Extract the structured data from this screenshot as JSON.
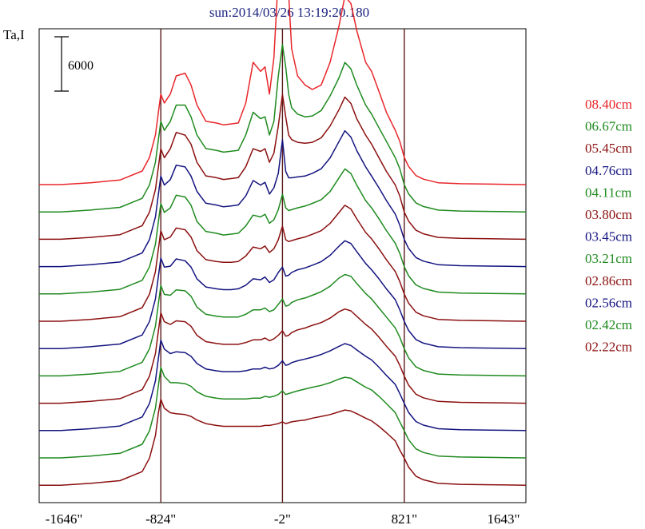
{
  "chart_data": {
    "type": "line",
    "title": "sun:2014/03/26 13:19:20.180",
    "ylabel": "Ta,I",
    "scale_bar_label": "6000",
    "x_tick_labels": [
      "-1646\"",
      "-824\"",
      "-2\"",
      "821\"",
      "1643\""
    ],
    "x_ticks": [
      -1646,
      -824,
      -2,
      821,
      1643
    ],
    "xlim": [
      -1646,
      1643
    ],
    "vertical_lines": [
      -824,
      -2,
      821
    ],
    "colors": {
      "red": "#e8262a",
      "green": "#1f8a1f",
      "darkred": "#8b1010",
      "blue": "#141480",
      "line": "#5a1a1a"
    },
    "shape_x": [
      -1646,
      -1500,
      -1300,
      -1100,
      -950,
      -900,
      -860,
      -840,
      -824,
      -800,
      -760,
      -720,
      -660,
      -620,
      -580,
      -520,
      -450,
      -400,
      -350,
      -300,
      -250,
      -200,
      -150,
      -120,
      -90,
      -60,
      -30,
      -2,
      20,
      40,
      60,
      100,
      150,
      200,
      260,
      320,
      380,
      420,
      460,
      500,
      560,
      600,
      650,
      700,
      760,
      790,
      821,
      850,
      900,
      950,
      1050,
      1200,
      1400,
      1643
    ],
    "series": [
      {
        "name": "08.40cm",
        "color": "red",
        "offset": 0,
        "y": [
          0,
          0,
          200,
          500,
          1500,
          3000,
          5500,
          8000,
          10000,
          9000,
          10000,
          12000,
          12300,
          11000,
          8800,
          7000,
          6800,
          6600,
          6700,
          6800,
          9000,
          13500,
          12500,
          13000,
          10000,
          14000,
          23000,
          27000,
          26000,
          21000,
          15000,
          12000,
          11000,
          10500,
          11000,
          13500,
          17500,
          20800,
          20000,
          17000,
          13500,
          12500,
          10300,
          8000,
          6000,
          4800,
          3000,
          2000,
          1000,
          600,
          200,
          100,
          50,
          0
        ]
      },
      {
        "name": "06.67cm",
        "color": "green",
        "offset": 0,
        "y": [
          0,
          0,
          200,
          500,
          1500,
          3000,
          5500,
          8000,
          10000,
          9000,
          10000,
          11800,
          11800,
          10500,
          8500,
          7000,
          6800,
          6600,
          6700,
          6800,
          8500,
          11000,
          10300,
          10500,
          8500,
          10000,
          15000,
          18500,
          16000,
          13000,
          11500,
          10800,
          10500,
          10600,
          11200,
          12800,
          14800,
          16500,
          15800,
          14000,
          11800,
          10800,
          9300,
          7800,
          6000,
          4800,
          3000,
          2000,
          1000,
          600,
          200,
          100,
          50,
          0
        ]
      },
      {
        "name": "05.45cm",
        "color": "darkred",
        "offset": 0,
        "y": [
          0,
          0,
          200,
          500,
          1500,
          3000,
          5500,
          8000,
          10000,
          9000,
          10000,
          11800,
          11500,
          10500,
          8500,
          7000,
          6800,
          6600,
          6700,
          6800,
          8000,
          10000,
          9700,
          10000,
          8500,
          9500,
          12500,
          16000,
          13500,
          11500,
          11000,
          10700,
          10600,
          10700,
          11200,
          12500,
          14300,
          15700,
          15000,
          13300,
          11500,
          10500,
          9000,
          7500,
          6000,
          4800,
          3000,
          2000,
          1000,
          600,
          200,
          100,
          50,
          0
        ]
      },
      {
        "name": "04.76cm",
        "color": "blue",
        "offset": 0,
        "y": [
          0,
          0,
          200,
          500,
          1500,
          3000,
          5500,
          8000,
          10000,
          9000,
          9600,
          11200,
          11000,
          10000,
          8300,
          7000,
          6800,
          6600,
          6700,
          6800,
          7800,
          9500,
          9000,
          9300,
          8000,
          8700,
          10300,
          14000,
          10500,
          9800,
          9800,
          9900,
          10000,
          10300,
          10800,
          12000,
          13800,
          15000,
          14300,
          12800,
          11000,
          10000,
          8700,
          7300,
          5800,
          4600,
          3000,
          2000,
          1000,
          600,
          200,
          100,
          50,
          0
        ]
      },
      {
        "name": "04.11cm",
        "color": "green",
        "offset": 0,
        "y": [
          0,
          0,
          200,
          500,
          1500,
          3000,
          5500,
          8000,
          10000,
          9000,
          9500,
          10900,
          10700,
          9800,
          8000,
          6900,
          6700,
          6500,
          6600,
          6700,
          7500,
          8700,
          8500,
          8800,
          7800,
          8200,
          9300,
          11000,
          9500,
          9200,
          9300,
          9500,
          9700,
          10000,
          10400,
          11300,
          12800,
          13800,
          13300,
          12000,
          10300,
          9500,
          8300,
          7000,
          5600,
          4500,
          3000,
          2000,
          1000,
          600,
          200,
          100,
          50,
          0
        ]
      },
      {
        "name": "03.80cm",
        "color": "darkred",
        "offset": 0,
        "y": [
          0,
          0,
          200,
          500,
          1500,
          3000,
          5500,
          8000,
          10000,
          9000,
          9300,
          10300,
          10100,
          9300,
          7800,
          6800,
          6600,
          6500,
          6500,
          6600,
          7200,
          8200,
          8000,
          8300,
          7600,
          8000,
          9000,
          10500,
          9000,
          8800,
          8900,
          9100,
          9300,
          9600,
          10000,
          10800,
          12000,
          12800,
          12400,
          11300,
          9800,
          9100,
          8000,
          6800,
          5500,
          4400,
          3000,
          2000,
          1000,
          600,
          200,
          100,
          50,
          0
        ]
      },
      {
        "name": "03.45cm",
        "color": "blue",
        "offset": 0,
        "y": [
          0,
          0,
          200,
          500,
          1500,
          3000,
          5500,
          8000,
          10000,
          9000,
          9100,
          9900,
          9700,
          9000,
          7700,
          6800,
          6600,
          6500,
          6500,
          6600,
          7000,
          7700,
          7600,
          7900,
          7300,
          7600,
          8400,
          9000,
          8000,
          8100,
          8400,
          8700,
          8900,
          9200,
          9600,
          10300,
          11300,
          11900,
          11600,
          10700,
          9400,
          8700,
          7700,
          6600,
          5400,
          4300,
          3000,
          2000,
          1000,
          600,
          200,
          100,
          50,
          0
        ]
      },
      {
        "name": "03.21cm",
        "color": "green",
        "offset": 0,
        "y": [
          0,
          0,
          200,
          500,
          1500,
          3000,
          5500,
          8000,
          10000,
          9000,
          8900,
          9500,
          9400,
          8800,
          7600,
          6800,
          6600,
          6500,
          6500,
          6500,
          6800,
          7300,
          7300,
          7500,
          7100,
          7300,
          7900,
          8500,
          7700,
          7800,
          8100,
          8400,
          8600,
          8900,
          9300,
          9900,
          10800,
          11200,
          11000,
          10200,
          9100,
          8500,
          7500,
          6500,
          5300,
          4300,
          3000,
          2000,
          1000,
          600,
          200,
          100,
          50,
          0
        ]
      },
      {
        "name": "02.86cm",
        "color": "darkred",
        "offset": 0,
        "y": [
          0,
          0,
          200,
          500,
          1500,
          3000,
          5500,
          8000,
          10000,
          9000,
          8700,
          9100,
          9000,
          8500,
          7500,
          6800,
          6600,
          6500,
          6500,
          6500,
          6700,
          7000,
          7000,
          7200,
          6900,
          7100,
          7500,
          8000,
          7400,
          7500,
          7800,
          8100,
          8300,
          8600,
          8900,
          9400,
          10100,
          10400,
          10200,
          9600,
          8700,
          8200,
          7300,
          6300,
          5200,
          4200,
          3000,
          2000,
          1000,
          600,
          200,
          100,
          50,
          0
        ]
      },
      {
        "name": "02.56cm",
        "color": "blue",
        "offset": 0,
        "y": [
          0,
          0,
          200,
          500,
          1500,
          3000,
          5500,
          8000,
          10000,
          9000,
          8500,
          8700,
          8600,
          8200,
          7400,
          6800,
          6600,
          6500,
          6500,
          6500,
          6600,
          6800,
          6800,
          7000,
          6800,
          6900,
          7200,
          7700,
          7200,
          7300,
          7500,
          7700,
          7900,
          8100,
          8400,
          8800,
          9300,
          9600,
          9400,
          8900,
          8200,
          7800,
          7000,
          6100,
          5100,
          4100,
          3000,
          2000,
          1000,
          600,
          200,
          100,
          50,
          0
        ]
      },
      {
        "name": "02.42cm",
        "color": "green",
        "offset": 0,
        "y": [
          0,
          0,
          200,
          500,
          1500,
          3000,
          5500,
          8000,
          10000,
          9000,
          8300,
          8300,
          8200,
          7900,
          7300,
          6800,
          6600,
          6500,
          6500,
          6500,
          6500,
          6600,
          6600,
          6800,
          6700,
          6800,
          7000,
          7400,
          7000,
          7100,
          7200,
          7400,
          7600,
          7800,
          8000,
          8300,
          8700,
          8900,
          8800,
          8400,
          7800,
          7500,
          6800,
          6000,
          5000,
          4000,
          3000,
          2000,
          1000,
          600,
          200,
          100,
          50,
          0
        ]
      },
      {
        "name": "02.22cm",
        "color": "darkred",
        "offset": 0,
        "y": [
          0,
          0,
          200,
          500,
          1500,
          3000,
          5500,
          8000,
          9500,
          8500,
          8000,
          7900,
          7800,
          7600,
          7200,
          6800,
          6600,
          6500,
          6500,
          6500,
          6500,
          6500,
          6500,
          6600,
          6600,
          6700,
          6800,
          7000,
          6800,
          6900,
          7000,
          7100,
          7200,
          7400,
          7600,
          7800,
          8100,
          8300,
          8200,
          7900,
          7400,
          7100,
          6500,
          5800,
          4900,
          3900,
          3000,
          2000,
          1000,
          600,
          200,
          100,
          50,
          0
        ]
      }
    ]
  }
}
